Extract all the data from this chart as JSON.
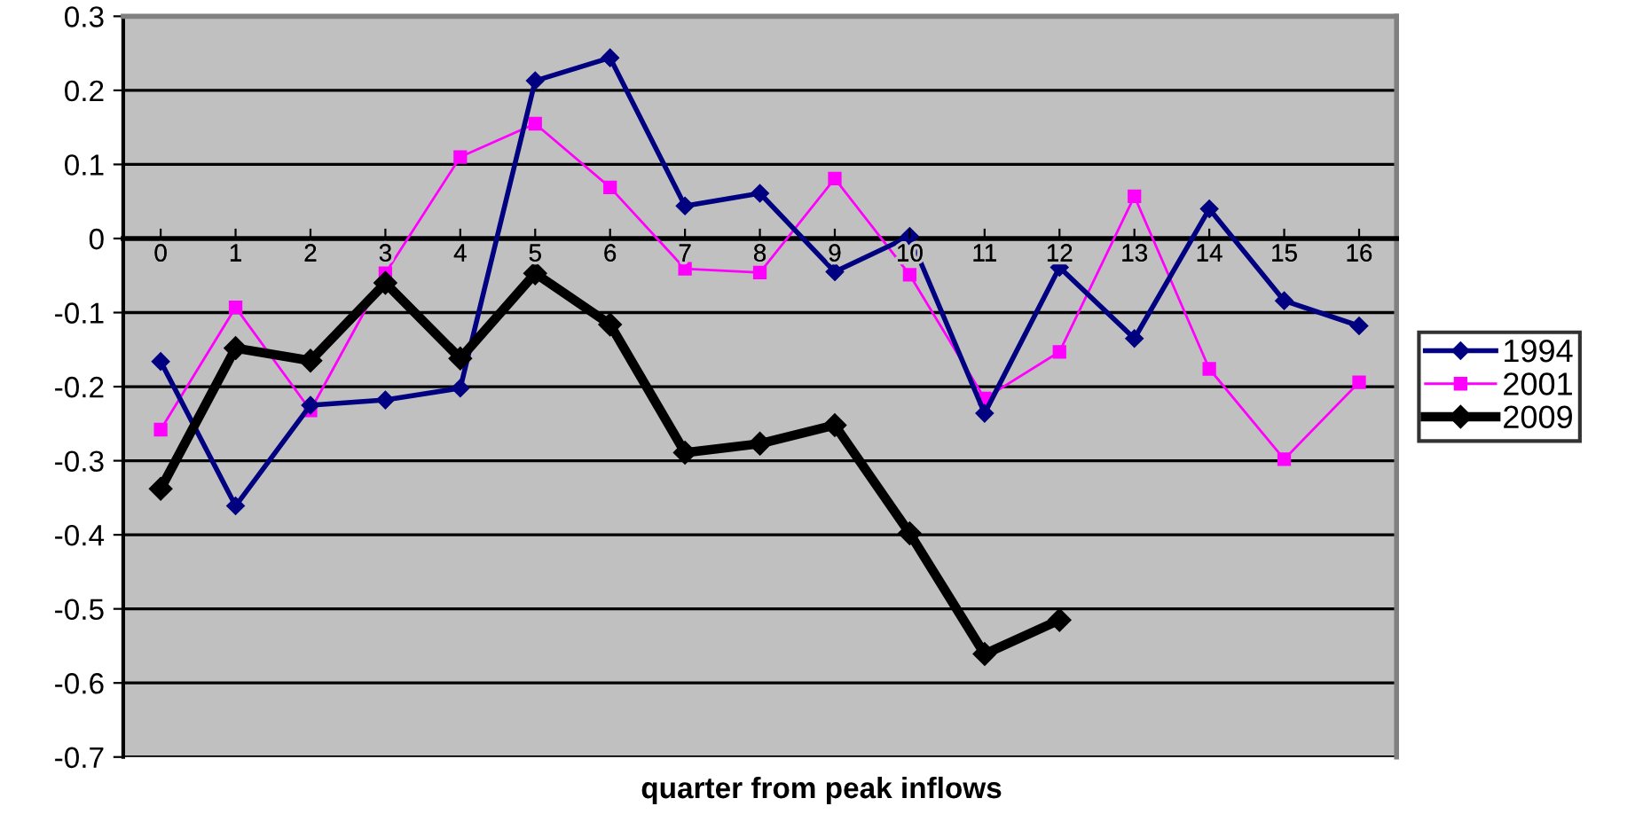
{
  "chart_data": {
    "type": "line",
    "xlabel": "quarter from peak inflows",
    "categories": [
      "0",
      "1",
      "2",
      "3",
      "4",
      "5",
      "6",
      "7",
      "8",
      "9",
      "10",
      "11",
      "12",
      "13",
      "14",
      "15",
      "16"
    ],
    "series": [
      {
        "name": "1994",
        "color": "#000080",
        "marker": "diamond",
        "values": [
          -0.166,
          -0.361,
          -0.225,
          -0.218,
          -0.202,
          0.213,
          0.244,
          0.044,
          0.061,
          -0.045,
          0.003,
          -0.236,
          -0.039,
          -0.135,
          0.04,
          -0.084,
          -0.118
        ]
      },
      {
        "name": "2001",
        "color": "#ff00ff",
        "marker": "square",
        "values": [
          -0.258,
          -0.093,
          -0.232,
          -0.047,
          0.11,
          0.155,
          0.069,
          -0.041,
          -0.046,
          0.081,
          -0.049,
          -0.216,
          -0.153,
          0.057,
          -0.176,
          -0.298,
          -0.194
        ]
      },
      {
        "name": "2009",
        "color": "#000000",
        "marker": "diamond",
        "values": [
          -0.338,
          -0.148,
          -0.165,
          -0.06,
          -0.162,
          -0.047,
          -0.116,
          -0.289,
          -0.277,
          -0.252,
          -0.398,
          -0.561,
          -0.515,
          null,
          null,
          null,
          null
        ]
      }
    ],
    "ylim": [
      -0.7,
      0.3
    ],
    "yticks": [
      0.3,
      0.2,
      0.1,
      0,
      -0.1,
      -0.2,
      -0.3,
      -0.4,
      -0.5,
      -0.6,
      -0.7
    ],
    "grid": "y",
    "legend": "right",
    "line_style": "solid"
  }
}
